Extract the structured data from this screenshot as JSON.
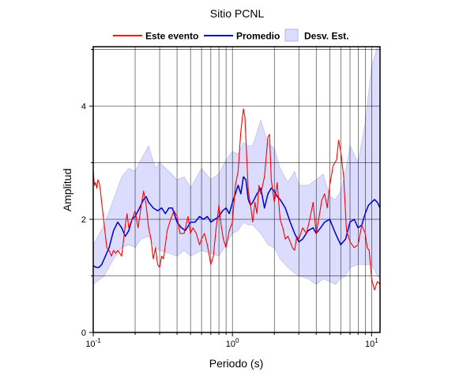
{
  "chart_data": {
    "type": "line",
    "title": "Sitio PCNL",
    "xlabel": "Periodo (s)",
    "ylabel": "Amplitud",
    "x_scale": "log",
    "xlim": [
      0.1,
      11.5
    ],
    "ylim": [
      0,
      5.05
    ],
    "grid": true,
    "legend_position": "top",
    "x_tick_labels": [
      {
        "mant": "10",
        "exp": "-1",
        "value": 0.1
      },
      {
        "mant": "10",
        "exp": "0",
        "value": 1
      },
      {
        "mant": "10",
        "exp": "1",
        "value": 10
      }
    ],
    "y_tick_labels": [
      "0",
      "2",
      "4"
    ],
    "y_ticks": [
      0,
      2,
      4
    ],
    "legend": {
      "event": "Este evento",
      "mean": "Promedio",
      "std": "Desv. Est."
    },
    "colors": {
      "event": "#ff0000",
      "mean": "#0000cc",
      "band_fill": "#dcdcff",
      "band_stroke": "#b4b4f0"
    },
    "band": {
      "name": "Desv. Est.",
      "x": [
        0.1,
        0.12,
        0.14,
        0.16,
        0.18,
        0.2,
        0.22,
        0.25,
        0.28,
        0.3,
        0.35,
        0.4,
        0.45,
        0.5,
        0.6,
        0.7,
        0.8,
        0.9,
        1.0,
        1.1,
        1.2,
        1.3,
        1.4,
        1.6,
        1.8,
        2.0,
        2.2,
        2.5,
        2.8,
        3.0,
        3.5,
        4.0,
        4.5,
        5.0,
        5.5,
        6.0,
        6.5,
        7.0,
        8.0,
        9.0,
        10.0,
        11.0,
        11.5
      ],
      "upper": [
        1.55,
        1.9,
        2.35,
        2.75,
        2.9,
        2.85,
        3.05,
        3.3,
        2.9,
        3.0,
        2.85,
        2.7,
        2.75,
        2.55,
        2.9,
        2.7,
        2.8,
        3.05,
        3.2,
        3.15,
        3.35,
        3.3,
        3.3,
        3.75,
        3.35,
        3.25,
        2.9,
        2.65,
        2.85,
        2.6,
        2.6,
        2.7,
        2.8,
        2.4,
        2.35,
        2.5,
        2.85,
        3.3,
        3.0,
        3.7,
        4.7,
        5.05,
        5.05
      ],
      "lower": [
        0.85,
        1.0,
        1.3,
        1.5,
        1.55,
        1.5,
        1.65,
        1.7,
        1.5,
        1.45,
        1.4,
        1.35,
        1.45,
        1.35,
        1.45,
        1.4,
        1.35,
        1.55,
        1.75,
        1.8,
        1.95,
        1.9,
        1.9,
        1.75,
        1.55,
        1.5,
        1.3,
        1.15,
        1.05,
        1.0,
        0.95,
        0.85,
        0.95,
        0.9,
        0.85,
        0.95,
        1.0,
        1.15,
        1.2,
        1.2,
        1.2,
        1.0,
        0.95
      ]
    },
    "series": [
      {
        "name": "Promedio",
        "x": [
          0.1,
          0.105,
          0.11,
          0.115,
          0.12,
          0.13,
          0.14,
          0.15,
          0.16,
          0.17,
          0.18,
          0.19,
          0.2,
          0.21,
          0.22,
          0.23,
          0.24,
          0.25,
          0.27,
          0.29,
          0.31,
          0.33,
          0.35,
          0.37,
          0.4,
          0.43,
          0.46,
          0.5,
          0.54,
          0.58,
          0.62,
          0.66,
          0.7,
          0.75,
          0.8,
          0.85,
          0.9,
          0.95,
          1.0,
          1.05,
          1.1,
          1.15,
          1.2,
          1.25,
          1.3,
          1.35,
          1.4,
          1.5,
          1.6,
          1.7,
          1.8,
          1.9,
          2.0,
          2.1,
          2.2,
          2.4,
          2.6,
          2.8,
          3.0,
          3.2,
          3.5,
          3.8,
          4.0,
          4.3,
          4.6,
          5.0,
          5.5,
          6.0,
          6.5,
          7.0,
          7.5,
          8.0,
          8.5,
          9.0,
          9.5,
          10.0,
          10.5,
          11.0,
          11.5
        ],
        "y": [
          1.18,
          1.15,
          1.15,
          1.2,
          1.3,
          1.5,
          1.8,
          1.95,
          1.85,
          1.7,
          1.8,
          2.0,
          2.05,
          2.15,
          2.25,
          2.35,
          2.4,
          2.3,
          2.2,
          2.15,
          2.2,
          2.1,
          2.2,
          2.2,
          1.95,
          1.85,
          1.8,
          1.95,
          1.95,
          2.05,
          2.0,
          2.05,
          1.95,
          2.0,
          2.05,
          2.15,
          2.2,
          2.1,
          2.3,
          2.45,
          2.6,
          2.45,
          2.75,
          2.7,
          2.35,
          2.25,
          2.3,
          2.45,
          2.55,
          2.2,
          2.45,
          2.55,
          2.5,
          2.4,
          2.35,
          2.2,
          1.95,
          1.75,
          1.6,
          1.65,
          1.8,
          1.85,
          1.75,
          1.85,
          1.95,
          2.0,
          1.75,
          1.55,
          1.65,
          1.95,
          2.0,
          1.85,
          1.9,
          2.1,
          2.25,
          2.3,
          2.35,
          2.3,
          2.2
        ]
      },
      {
        "name": "Este evento",
        "x": [
          0.1,
          0.102,
          0.104,
          0.106,
          0.108,
          0.11,
          0.112,
          0.115,
          0.12,
          0.125,
          0.13,
          0.135,
          0.14,
          0.145,
          0.15,
          0.16,
          0.17,
          0.175,
          0.18,
          0.19,
          0.2,
          0.21,
          0.22,
          0.23,
          0.24,
          0.25,
          0.26,
          0.27,
          0.28,
          0.29,
          0.3,
          0.31,
          0.32,
          0.34,
          0.36,
          0.38,
          0.4,
          0.42,
          0.45,
          0.48,
          0.5,
          0.52,
          0.55,
          0.58,
          0.6,
          0.63,
          0.66,
          0.7,
          0.73,
          0.76,
          0.8,
          0.83,
          0.86,
          0.9,
          0.95,
          1.0,
          1.05,
          1.1,
          1.15,
          1.2,
          1.23,
          1.26,
          1.3,
          1.35,
          1.4,
          1.45,
          1.5,
          1.55,
          1.6,
          1.7,
          1.8,
          1.85,
          1.9,
          2.0,
          2.1,
          2.2,
          2.3,
          2.4,
          2.5,
          2.6,
          2.7,
          2.8,
          2.9,
          3.0,
          3.2,
          3.4,
          3.6,
          3.8,
          4.0,
          4.2,
          4.4,
          4.6,
          4.8,
          5.0,
          5.3,
          5.6,
          5.8,
          6.0,
          6.3,
          6.6,
          7.0,
          7.5,
          8.0,
          8.5,
          9.0,
          9.3,
          9.6,
          10.0,
          10.5,
          11.0,
          11.5
        ],
        "y": [
          2.85,
          2.6,
          2.65,
          2.55,
          2.7,
          2.65,
          2.55,
          2.3,
          1.9,
          1.5,
          1.45,
          1.35,
          1.45,
          1.4,
          1.45,
          1.35,
          1.9,
          2.1,
          1.85,
          2.0,
          2.15,
          1.85,
          2.2,
          2.5,
          2.25,
          1.85,
          1.65,
          1.3,
          1.5,
          1.2,
          1.15,
          1.35,
          1.3,
          1.8,
          2.0,
          2.15,
          2.05,
          1.75,
          1.75,
          2.05,
          1.75,
          1.85,
          1.75,
          1.55,
          1.65,
          1.75,
          1.55,
          1.2,
          1.35,
          1.8,
          2.25,
          1.9,
          1.65,
          1.5,
          1.8,
          1.95,
          2.6,
          2.85,
          3.55,
          3.95,
          3.8,
          3.25,
          2.5,
          2.25,
          1.95,
          2.3,
          2.1,
          2.6,
          2.45,
          2.75,
          3.45,
          3.5,
          2.7,
          2.3,
          2.65,
          2.0,
          1.85,
          1.65,
          1.7,
          1.6,
          1.5,
          1.45,
          1.7,
          1.65,
          1.85,
          1.75,
          2.0,
          2.3,
          1.75,
          2.05,
          2.35,
          2.45,
          2.2,
          2.6,
          2.95,
          3.05,
          3.4,
          3.2,
          2.75,
          1.8,
          1.6,
          1.5,
          1.55,
          1.9,
          1.75,
          1.5,
          1.45,
          0.95,
          0.75,
          0.9,
          0.85
        ]
      }
    ]
  }
}
